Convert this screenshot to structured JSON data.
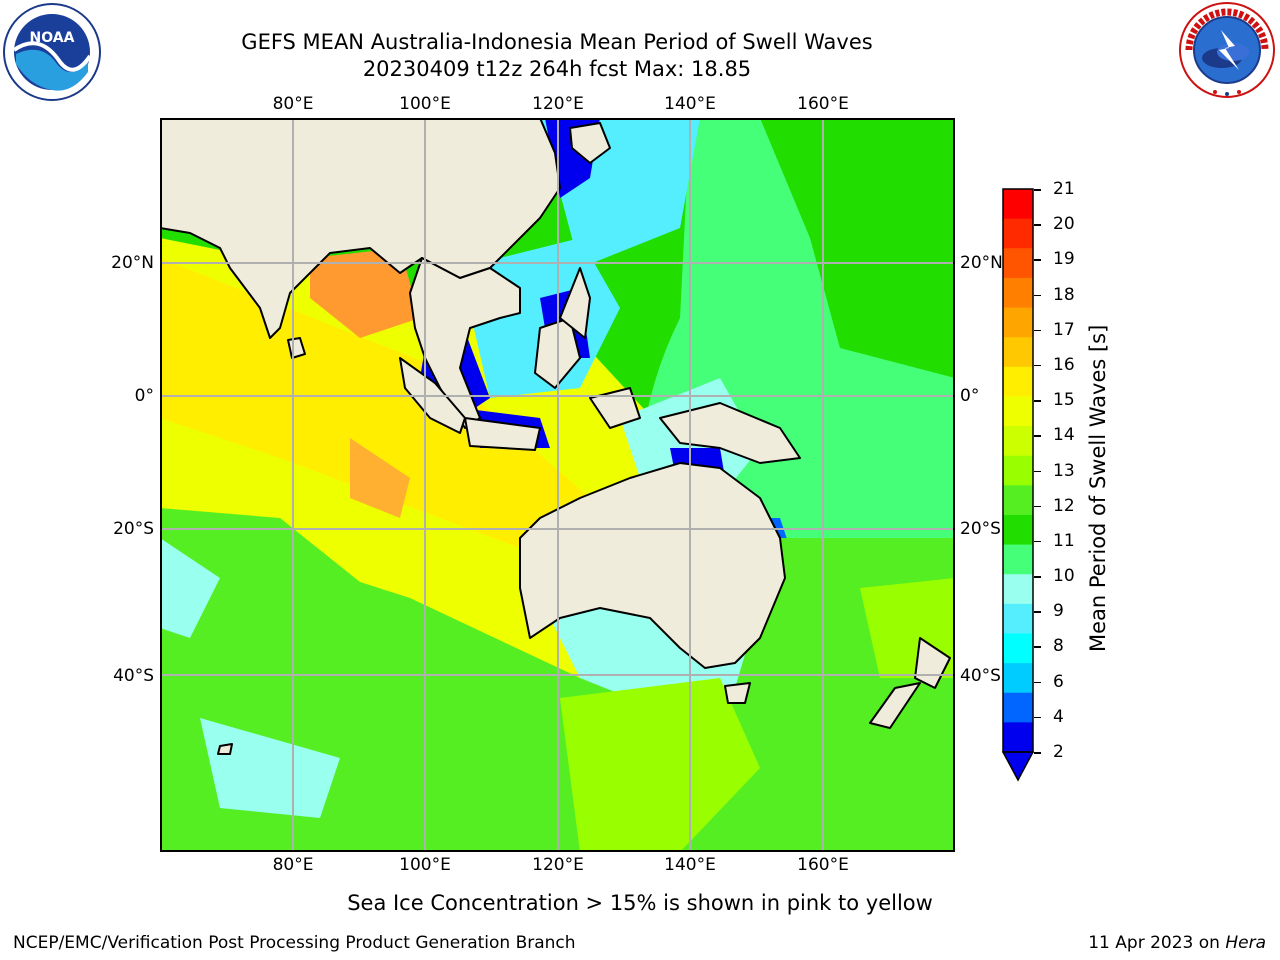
{
  "header": {
    "title_line1": "GEFS MEAN Australia-Indonesia Mean Period of Swell Waves",
    "title_line2": "20230409 t12z 264h fcst   Max: 18.85"
  },
  "logos": {
    "left": {
      "name": "noaa-logo",
      "text": "NOAA",
      "ring_text": "NATIONAL OCEANIC AND ATMOSPHERIC ADMINISTRATION · U.S. DEPARTMENT OF COMMERCE"
    },
    "right": {
      "name": "nws-logo",
      "ring_text": "NATIONAL WEATHER SERVICE"
    }
  },
  "map": {
    "lon_ticks_top": [
      "80°E",
      "100°E",
      "120°E",
      "140°E",
      "160°E"
    ],
    "lon_ticks_bottom": [
      "80°E",
      "100°E",
      "120°E",
      "140°E",
      "160°E"
    ],
    "lat_ticks_left": [
      "20°N",
      "0°",
      "20°S",
      "40°S"
    ],
    "lat_ticks_right": [
      "20°N",
      "0°",
      "20°S",
      "40°S"
    ],
    "colors": {
      "land": "#efecdc",
      "grid": "#b0b0b0"
    }
  },
  "colorbar": {
    "label": "Mean Period of Swell Waves [s]",
    "ticks": [
      "21",
      "20",
      "19",
      "18",
      "17",
      "16",
      "15",
      "14",
      "13",
      "12",
      "11",
      "10",
      "9",
      "8",
      "6",
      "4",
      "2"
    ],
    "colors": [
      "#ff0000",
      "#ff2a00",
      "#ff5500",
      "#ff7f00",
      "#ffa500",
      "#ffc800",
      "#ffee00",
      "#eeff00",
      "#ccff00",
      "#99ff00",
      "#55ee22",
      "#22dd00",
      "#44ff77",
      "#99ffee",
      "#55eeff",
      "#00ffff",
      "#00ccff",
      "#0066ff",
      "#0000ee"
    ]
  },
  "note": "Sea Ice Concentration > 15% is shown in pink to yellow",
  "footer": {
    "left": "NCEP/EMC/Verification Post Processing Product Generation Branch",
    "right_date": "11 Apr 2023 on ",
    "right_machine": "Hera"
  }
}
